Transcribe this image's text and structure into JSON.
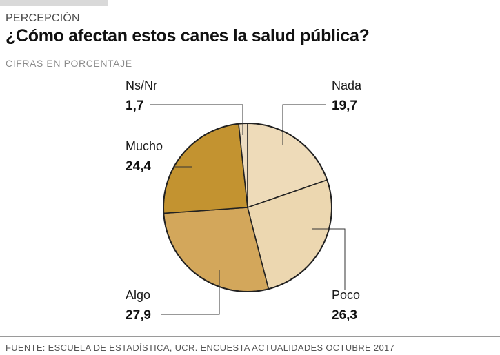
{
  "header": {
    "kicker": "PERCEPCIÓN",
    "title": "¿Cómo afectan estos canes la salud pública?",
    "subtitle": "CIFRAS EN PORCENTAJE"
  },
  "footer": {
    "source": "FUENTE: ESCUELA DE ESTADÍSTICA, UCR. ENCUESTA ACTUALIDADES OCTUBRE 2017"
  },
  "chart_data": {
    "type": "pie",
    "title": "¿Cómo afectan estos canes la salud pública?",
    "subtitle": "CIFRAS EN PORCENTAJE",
    "unit": "%",
    "slices": [
      {
        "label": "Nada",
        "value": 19.7,
        "display": "19,7",
        "color": "#eedbb9"
      },
      {
        "label": "Poco",
        "value": 26.3,
        "display": "26,3",
        "color": "#ecd7b0"
      },
      {
        "label": "Algo",
        "value": 27.9,
        "display": "27,9",
        "color": "#d3a75b"
      },
      {
        "label": "Mucho",
        "value": 24.4,
        "display": "24,4",
        "color": "#c39330"
      },
      {
        "label": "Ns/Nr",
        "value": 1.7,
        "display": "1,7",
        "color": "#eddcc0"
      }
    ]
  }
}
